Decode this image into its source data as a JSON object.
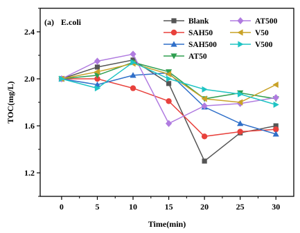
{
  "chart_data": {
    "type": "line",
    "panel_label": "(a)",
    "panel_title": "E.coli",
    "xlabel": "Time(min)",
    "ylabel": "TOC(mg/L)",
    "x": [
      0,
      5,
      10,
      15,
      20,
      25,
      30
    ],
    "xlim": [
      -3,
      32.5
    ],
    "ylim": [
      1.0,
      2.6
    ],
    "xticks": [
      0,
      5,
      10,
      15,
      20,
      25,
      30
    ],
    "yticks": [
      1.2,
      1.6,
      2.0,
      2.4
    ],
    "grid": false,
    "legend_position": "top-right",
    "series": [
      {
        "name": "Blank",
        "color": "#555555",
        "marker": "square",
        "values": [
          2.0,
          2.1,
          2.16,
          1.96,
          1.3,
          1.54,
          1.6
        ]
      },
      {
        "name": "SAH50",
        "color": "#e8413c",
        "marker": "circle",
        "values": [
          2.0,
          2.0,
          1.92,
          1.81,
          1.51,
          1.55,
          1.57
        ]
      },
      {
        "name": "SAH500",
        "color": "#2f6fc9",
        "marker": "triangle-up",
        "values": [
          2.0,
          1.95,
          2.03,
          2.05,
          1.76,
          1.62,
          1.53
        ]
      },
      {
        "name": "AT50",
        "color": "#2e9e4f",
        "marker": "triangle-down",
        "values": [
          2.0,
          2.03,
          2.14,
          2.06,
          1.83,
          1.88,
          1.83
        ]
      },
      {
        "name": "AT500",
        "color": "#b07be0",
        "marker": "diamond",
        "values": [
          2.0,
          2.15,
          2.21,
          1.62,
          1.77,
          1.79,
          1.84
        ]
      },
      {
        "name": "V50",
        "color": "#c9a227",
        "marker": "triangle-left",
        "values": [
          2.0,
          2.06,
          2.13,
          2.04,
          1.83,
          1.8,
          1.95
        ]
      },
      {
        "name": "V500",
        "color": "#1fc4c4",
        "marker": "triangle-right",
        "values": [
          2.0,
          1.92,
          2.14,
          2.0,
          1.91,
          1.87,
          1.78
        ]
      }
    ]
  }
}
